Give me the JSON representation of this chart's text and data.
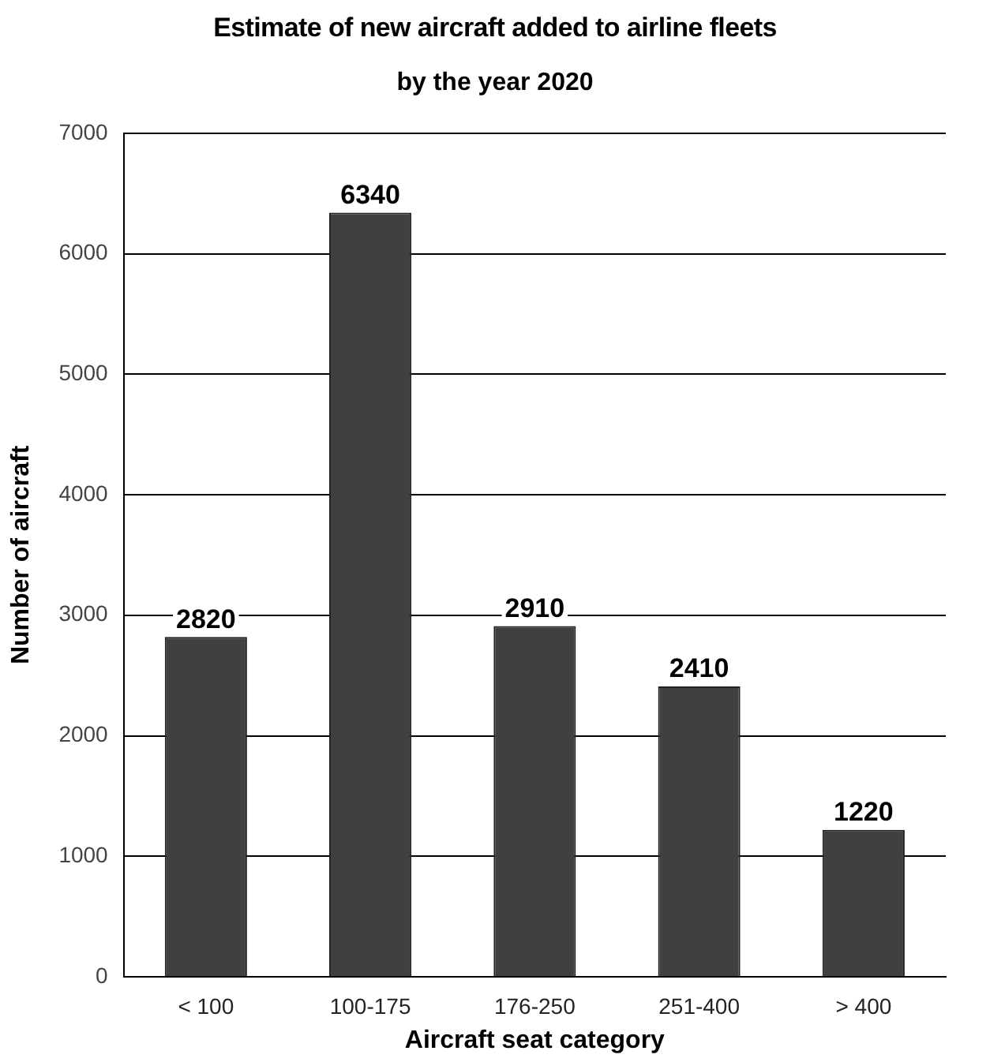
{
  "chart_data": {
    "type": "bar",
    "title": "Estimate of new aircraft added to airline fleets",
    "subtitle": "by the year 2020",
    "xlabel": "Aircraft seat category",
    "ylabel": "Number of aircraft",
    "categories": [
      "< 100",
      "100-175",
      "176-250",
      "251-400",
      "> 400"
    ],
    "values": [
      2820,
      6340,
      2910,
      2410,
      1220
    ],
    "color": "#404040",
    "ylim": [
      0,
      7000
    ],
    "yticks": [
      0,
      1000,
      2000,
      3000,
      4000,
      5000,
      6000,
      7000
    ],
    "grid": "y",
    "legend": false,
    "data_labels": true
  }
}
